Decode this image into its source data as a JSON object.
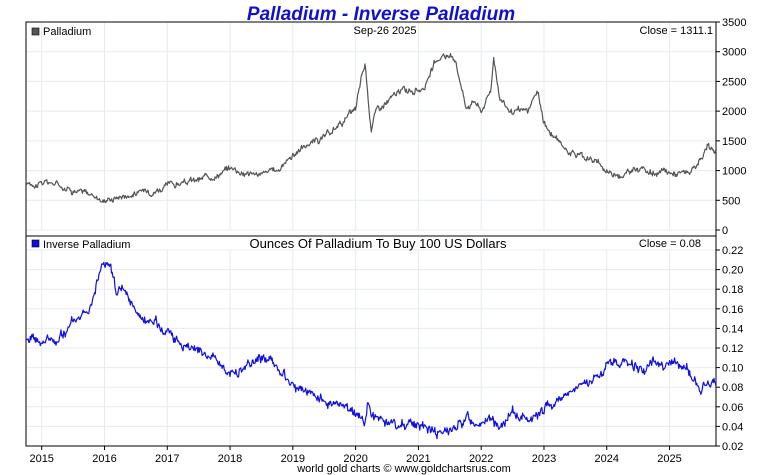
{
  "title": "Palladium - Inverse Palladium",
  "footer": "world gold charts © www.goldchartsrus.com",
  "colors": {
    "title": "#1010d0",
    "top_series": "#555555",
    "bottom_series": "#1010e0",
    "grid": "#e4ecf2"
  },
  "chart_data": [
    {
      "type": "line",
      "legend": "Palladium",
      "date_label": "Sep-26  2025",
      "close_label": "Close = 1311.1",
      "ylim": [
        0,
        3500
      ],
      "yticks": [
        0,
        500,
        1000,
        1500,
        2000,
        2500,
        3000,
        3500
      ],
      "grid": true,
      "x": [
        2014.75,
        2015.0,
        2015.25,
        2015.5,
        2015.75,
        2016.0,
        2016.25,
        2016.5,
        2016.75,
        2017.0,
        2017.25,
        2017.5,
        2017.75,
        2018.0,
        2018.25,
        2018.5,
        2018.75,
        2019.0,
        2019.15,
        2019.3,
        2019.45,
        2019.6,
        2019.75,
        2019.9,
        2020.0,
        2020.1,
        2020.15,
        2020.2,
        2020.25,
        2020.3,
        2020.5,
        2020.75,
        2021.0,
        2021.15,
        2021.25,
        2021.4,
        2021.6,
        2021.75,
        2021.9,
        2022.0,
        2022.15,
        2022.2,
        2022.3,
        2022.5,
        2022.75,
        2022.9,
        2023.0,
        2023.15,
        2023.3,
        2023.5,
        2023.75,
        2024.0,
        2024.15,
        2024.3,
        2024.5,
        2024.6,
        2024.75,
        2025.0,
        2025.25,
        2025.4,
        2025.5,
        2025.6,
        2025.74
      ],
      "values": [
        780,
        800,
        780,
        690,
        600,
        510,
        580,
        620,
        680,
        740,
        790,
        830,
        930,
        1050,
        980,
        930,
        1000,
        1280,
        1380,
        1480,
        1520,
        1600,
        1800,
        1920,
        2000,
        2600,
        2800,
        2200,
        1700,
        1980,
        2150,
        2350,
        2350,
        2500,
        2750,
        2950,
        2850,
        2100,
        2200,
        2000,
        2350,
        2900,
        2250,
        1950,
        2000,
        2300,
        1800,
        1550,
        1400,
        1300,
        1200,
        1000,
        950,
        950,
        1050,
        1020,
        950,
        960,
        950,
        1000,
        1150,
        1350,
        1311
      ]
    },
    {
      "type": "line",
      "legend": "Inverse Palladium",
      "subtitle": "Ounces Of Palladium To Buy 100 US Dollars",
      "close_label": "Close = 0.08",
      "ylim": [
        0.02,
        0.22
      ],
      "yticks": [
        0.02,
        0.04,
        0.06,
        0.08,
        0.1,
        0.12,
        0.14,
        0.16,
        0.18,
        0.2,
        0.22
      ],
      "ytick_labels": [
        "0.02",
        "0.04",
        "0.06",
        "0.08",
        "0.10",
        "0.12",
        "0.14",
        "0.16",
        "0.18",
        "0.20",
        "0.22"
      ],
      "grid": true,
      "x": [
        2014.75,
        2015.0,
        2015.25,
        2015.5,
        2015.75,
        2015.9,
        2016.0,
        2016.1,
        2016.2,
        2016.3,
        2016.4,
        2016.5,
        2016.65,
        2016.75,
        2016.9,
        2017.0,
        2017.25,
        2017.5,
        2017.75,
        2018.0,
        2018.25,
        2018.5,
        2018.75,
        2019.0,
        2019.25,
        2019.5,
        2019.75,
        2020.0,
        2020.15,
        2020.2,
        2020.3,
        2020.5,
        2020.75,
        2021.0,
        2021.25,
        2021.4,
        2021.6,
        2021.75,
        2021.9,
        2022.0,
        2022.15,
        2022.3,
        2022.5,
        2022.75,
        2023.0,
        2023.25,
        2023.5,
        2023.75,
        2024.0,
        2024.15,
        2024.3,
        2024.5,
        2024.6,
        2024.75,
        2025.0,
        2025.25,
        2025.4,
        2025.5,
        2025.6,
        2025.74
      ],
      "values": [
        0.128,
        0.125,
        0.128,
        0.145,
        0.165,
        0.195,
        0.21,
        0.2,
        0.17,
        0.18,
        0.165,
        0.16,
        0.145,
        0.15,
        0.14,
        0.135,
        0.125,
        0.12,
        0.11,
        0.095,
        0.1,
        0.108,
        0.1,
        0.08,
        0.073,
        0.067,
        0.058,
        0.05,
        0.045,
        0.068,
        0.05,
        0.047,
        0.043,
        0.043,
        0.038,
        0.034,
        0.036,
        0.048,
        0.045,
        0.05,
        0.043,
        0.04,
        0.05,
        0.05,
        0.056,
        0.071,
        0.077,
        0.083,
        0.1,
        0.105,
        0.105,
        0.1,
        0.1,
        0.105,
        0.105,
        0.1,
        0.087,
        0.077,
        0.083,
        0.08
      ]
    }
  ],
  "x_axis": {
    "range": [
      2014.75,
      2025.74
    ],
    "ticks": [
      2015,
      2016,
      2017,
      2018,
      2019,
      2020,
      2021,
      2022,
      2023,
      2024,
      2025
    ],
    "labels": [
      "2015",
      "2016",
      "2017",
      "2018",
      "2019",
      "2020",
      "2021",
      "2022",
      "2023",
      "2024",
      "2025"
    ]
  }
}
